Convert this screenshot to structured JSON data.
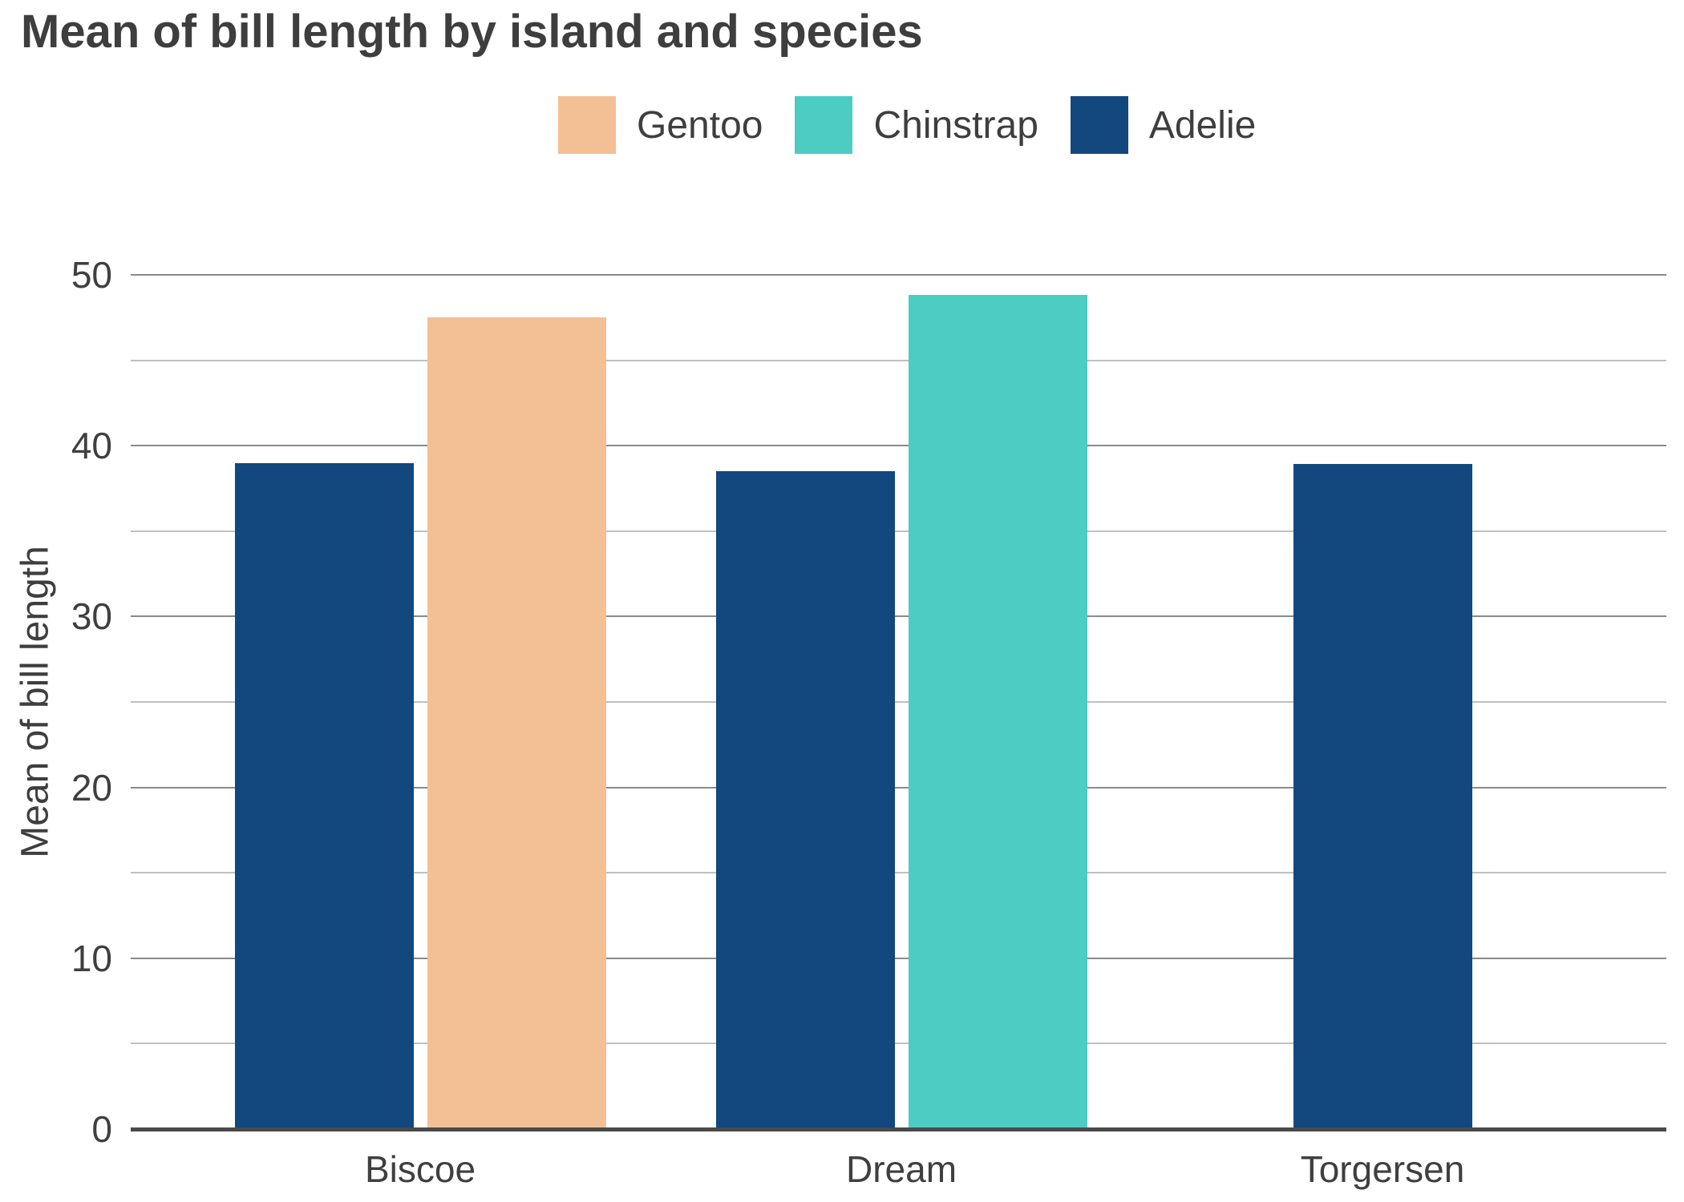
{
  "title": "Mean of bill length by island and species",
  "y_axis_title": "Mean of bill length",
  "colors": {
    "gentoo": "#F3C095",
    "chinstrap": "#4DCCC4",
    "adelie": "#12487E",
    "title_text": "#3E3E3E",
    "tick_text": "#3F3F3F",
    "major_gridline": "#8A8A8E",
    "minor_gridline": "#BFBFC4",
    "axis_line": "#4A4A4A",
    "background": "#FFFFFF"
  },
  "legend": {
    "position": "top-center",
    "items": [
      {
        "label": "Gentoo",
        "color_key": "gentoo"
      },
      {
        "label": "Chinstrap",
        "color_key": "chinstrap"
      },
      {
        "label": "Adelie",
        "color_key": "adelie"
      }
    ]
  },
  "chart_data": {
    "type": "bar",
    "title": "Mean of bill length by island and species",
    "xlabel": "",
    "ylabel": "Mean of bill length",
    "categories": [
      "Biscoe",
      "Dream",
      "Torgersen"
    ],
    "groups": [
      {
        "label": "Biscoe",
        "bars": [
          {
            "series": "Adelie",
            "value": 38.98,
            "color_key": "adelie"
          },
          {
            "series": "Gentoo",
            "value": 47.5,
            "color_key": "gentoo"
          }
        ]
      },
      {
        "label": "Dream",
        "bars": [
          {
            "series": "Adelie",
            "value": 38.5,
            "color_key": "adelie"
          },
          {
            "series": "Chinstrap",
            "value": 48.83,
            "color_key": "chinstrap"
          }
        ]
      },
      {
        "label": "Torgersen",
        "bars": [
          {
            "series": "Adelie",
            "value": 38.95,
            "color_key": "adelie"
          }
        ]
      }
    ],
    "series": [
      {
        "name": "Gentoo",
        "values": [
          47.5,
          null,
          null
        ]
      },
      {
        "name": "Chinstrap",
        "values": [
          null,
          48.83,
          null
        ]
      },
      {
        "name": "Adelie",
        "values": [
          38.98,
          38.5,
          38.95
        ]
      }
    ],
    "ylim": [
      0,
      50
    ],
    "yticks_major": [
      0,
      10,
      20,
      30,
      40,
      50
    ],
    "yticks_minor": [
      5,
      15,
      25,
      35,
      45
    ],
    "grid": true,
    "legend_position": "top"
  }
}
